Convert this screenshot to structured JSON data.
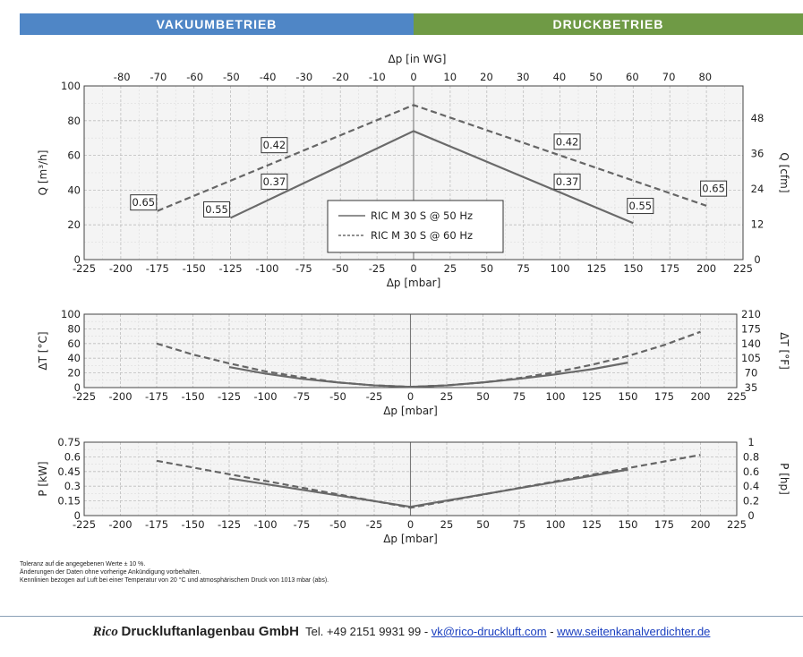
{
  "banner": {
    "left": "VAKUUMBETRIEB",
    "right": "DRUCKBETRIEB",
    "left_color": "#4f86c6",
    "right_color": "#6f9a45"
  },
  "notes": [
    "Toleranz auf die angegebenen Werte ± 10 %.",
    "Änderungen der Daten ohne vorherige Ankündigung vorbehalten.",
    "Kennlinien bezogen auf Luft bei einer Temperatur von 20 °C und atmosphärischem Druck von 1013 mbar (abs)."
  ],
  "footer": {
    "brand": "Rico",
    "company": "Druckluftanlagenbau GmbH",
    "tel_label": "Tel.",
    "tel": "+49 2151 9931 99",
    "sep": "-",
    "email": "vk@rico-druckluft.com",
    "web": "www.seitenkanalverdichter.de"
  },
  "chart_data": [
    {
      "type": "line",
      "id": "flow",
      "xlabel": "Δp [mbar]",
      "x2label": "Δp [in WG]",
      "ylabel": "Q [m³/h]",
      "y2label": "Q [cfm]",
      "xlim": [
        -225,
        225
      ],
      "ylim": [
        0,
        100
      ],
      "x_ticks": [
        -225,
        -200,
        -175,
        -150,
        -125,
        -100,
        -75,
        -50,
        -25,
        0,
        25,
        50,
        75,
        100,
        125,
        150,
        175,
        200,
        225
      ],
      "y_ticks": [
        0,
        20,
        40,
        60,
        80,
        100
      ],
      "x2_ticks": [
        -80,
        -70,
        -60,
        -50,
        -40,
        -30,
        -20,
        -10,
        0,
        10,
        20,
        30,
        40,
        50,
        60,
        70,
        80
      ],
      "y2_ticks": [
        0,
        12,
        24,
        36,
        48
      ],
      "grid": true,
      "series": [
        {
          "name": "RIC M 30 S @ 50 Hz",
          "style": "solid",
          "x": [
            -125,
            0,
            150
          ],
          "y": [
            24,
            74,
            21
          ]
        },
        {
          "name": "RIC M 30 S @ 60 Hz",
          "style": "dashed",
          "x": [
            -175,
            0,
            200
          ],
          "y": [
            28,
            89,
            31
          ]
        }
      ],
      "annotations": [
        {
          "text": "0.65",
          "x": -175,
          "y": 28,
          "side": "left"
        },
        {
          "text": "0.55",
          "x": -125,
          "y": 24,
          "side": "left"
        },
        {
          "text": "0.37",
          "x": -100,
          "y": 40,
          "side": "right"
        },
        {
          "text": "0.42",
          "x": -100,
          "y": 61,
          "side": "right"
        },
        {
          "text": "0.42",
          "x": 100,
          "y": 63,
          "side": "right"
        },
        {
          "text": "0.37",
          "x": 100,
          "y": 40,
          "side": "right"
        },
        {
          "text": "0.55",
          "x": 150,
          "y": 26,
          "side": "right"
        },
        {
          "text": "0.65",
          "x": 200,
          "y": 36,
          "side": "right"
        }
      ],
      "legend": {
        "position": "center",
        "entries": [
          "RIC M 30 S @ 50 Hz",
          "RIC M 30 S @ 60 Hz"
        ]
      }
    },
    {
      "type": "line",
      "id": "temp",
      "xlabel": "Δp [mbar]",
      "ylabel": "ΔT [°C]",
      "y2label": "ΔT [°F]",
      "xlim": [
        -225,
        225
      ],
      "ylim": [
        0,
        100
      ],
      "x_ticks": [
        -225,
        -200,
        -175,
        -150,
        -125,
        -100,
        -75,
        -50,
        -25,
        0,
        25,
        50,
        75,
        100,
        125,
        150,
        175,
        200,
        225
      ],
      "y_ticks": [
        0,
        20,
        40,
        60,
        80,
        100
      ],
      "y2_ticks": [
        35,
        70,
        105,
        140,
        175,
        210
      ],
      "grid": true,
      "series": [
        {
          "name": "RIC M 30 S @ 50 Hz",
          "style": "solid",
          "x": [
            -125,
            -100,
            -75,
            -50,
            -25,
            0,
            25,
            50,
            75,
            100,
            125,
            150
          ],
          "y": [
            28,
            19,
            12,
            7,
            3,
            1,
            3,
            7,
            12,
            18,
            25,
            34
          ]
        },
        {
          "name": "RIC M 30 S @ 60 Hz",
          "style": "dashed",
          "x": [
            -175,
            -150,
            -125,
            -100,
            -75,
            -50,
            -25,
            0,
            25,
            50,
            75,
            100,
            125,
            150,
            175,
            200
          ],
          "y": [
            60,
            45,
            33,
            22,
            14,
            7,
            3,
            1,
            3,
            7,
            13,
            21,
            31,
            43,
            58,
            76
          ]
        }
      ]
    },
    {
      "type": "line",
      "id": "power",
      "xlabel": "Δp [mbar]",
      "ylabel": "P [kW]",
      "y2label": "P [hp]",
      "xlim": [
        -225,
        225
      ],
      "ylim": [
        0,
        0.75
      ],
      "x_ticks": [
        -225,
        -200,
        -175,
        -150,
        -125,
        -100,
        -75,
        -50,
        -25,
        0,
        25,
        50,
        75,
        100,
        125,
        150,
        175,
        200,
        225
      ],
      "y_ticks": [
        0,
        0.15,
        0.3,
        0.45,
        0.6,
        0.75
      ],
      "y_tick_labels": [
        "0",
        "0.15",
        "0.3",
        "0.45",
        "0.6",
        "0.75"
      ],
      "y2_ticks": [
        0,
        0.2,
        0.4,
        0.6,
        0.8,
        1
      ],
      "y2_tick_labels": [
        "0",
        "0.2",
        "0.4",
        "0.6",
        "0.8",
        "1"
      ],
      "y2_max": 1,
      "grid": true,
      "series": [
        {
          "name": "RIC M 30 S @ 50 Hz",
          "style": "solid",
          "x": [
            -125,
            0,
            150
          ],
          "y": [
            0.38,
            0.09,
            0.47
          ]
        },
        {
          "name": "RIC M 30 S @ 60 Hz",
          "style": "dashed",
          "x": [
            -175,
            0,
            200
          ],
          "y": [
            0.56,
            0.08,
            0.62
          ]
        }
      ]
    }
  ]
}
